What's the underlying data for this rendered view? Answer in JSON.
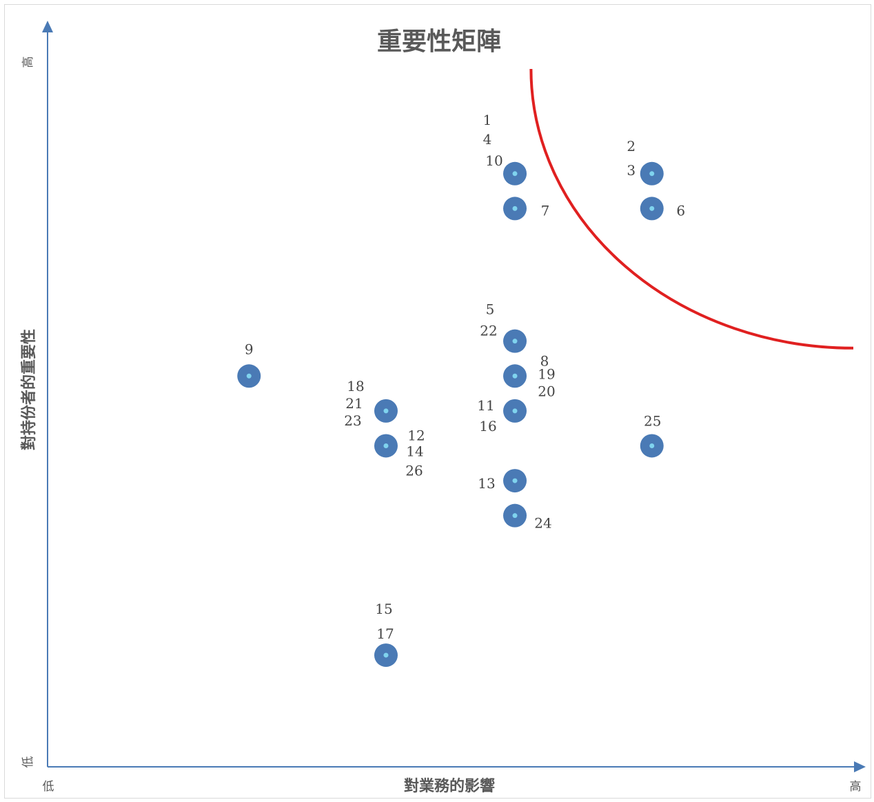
{
  "chart_data": {
    "type": "scatter",
    "title": "重要性矩陣",
    "xlabel": "對業務的影響",
    "ylabel": "對持份者的重要性",
    "x_low": "低",
    "x_high": "高",
    "y_low": "低",
    "y_high": "高",
    "xlim": [
      0,
      10
    ],
    "ylim": [
      0,
      10
    ],
    "grid": false,
    "legend": "none",
    "colors": {
      "axis": "#4a7ab5",
      "point": "#4a7ab5",
      "point_center": "#7fd3ee",
      "threshold_curve": "#e02020"
    },
    "threshold_curve": {
      "center": [
        10,
        10
      ],
      "radius": 4.0
    },
    "points": [
      {
        "x": 5.8,
        "y": 8.5,
        "labels": [
          "1",
          "4",
          "10"
        ]
      },
      {
        "x": 7.5,
        "y": 8.5,
        "labels": [
          "2",
          "3"
        ]
      },
      {
        "x": 5.8,
        "y": 8.0,
        "labels": [
          "7"
        ]
      },
      {
        "x": 7.5,
        "y": 8.0,
        "labels": [
          "6"
        ]
      },
      {
        "x": 5.8,
        "y": 6.1,
        "labels": [
          "5",
          "22"
        ]
      },
      {
        "x": 2.5,
        "y": 5.6,
        "labels": [
          "9"
        ]
      },
      {
        "x": 5.8,
        "y": 5.6,
        "labels": [
          "8",
          "19",
          "20"
        ]
      },
      {
        "x": 4.2,
        "y": 5.1,
        "labels": [
          "18",
          "21",
          "23"
        ]
      },
      {
        "x": 5.8,
        "y": 5.1,
        "labels": [
          "11",
          "16"
        ]
      },
      {
        "x": 4.2,
        "y": 4.6,
        "labels": [
          "12",
          "14",
          "26"
        ]
      },
      {
        "x": 7.5,
        "y": 4.6,
        "labels": [
          "25"
        ]
      },
      {
        "x": 5.8,
        "y": 4.1,
        "labels": [
          "13"
        ]
      },
      {
        "x": 5.8,
        "y": 3.6,
        "labels": [
          "24"
        ]
      },
      {
        "x": 4.2,
        "y": 1.6,
        "labels": [
          "15",
          "17"
        ]
      }
    ]
  }
}
